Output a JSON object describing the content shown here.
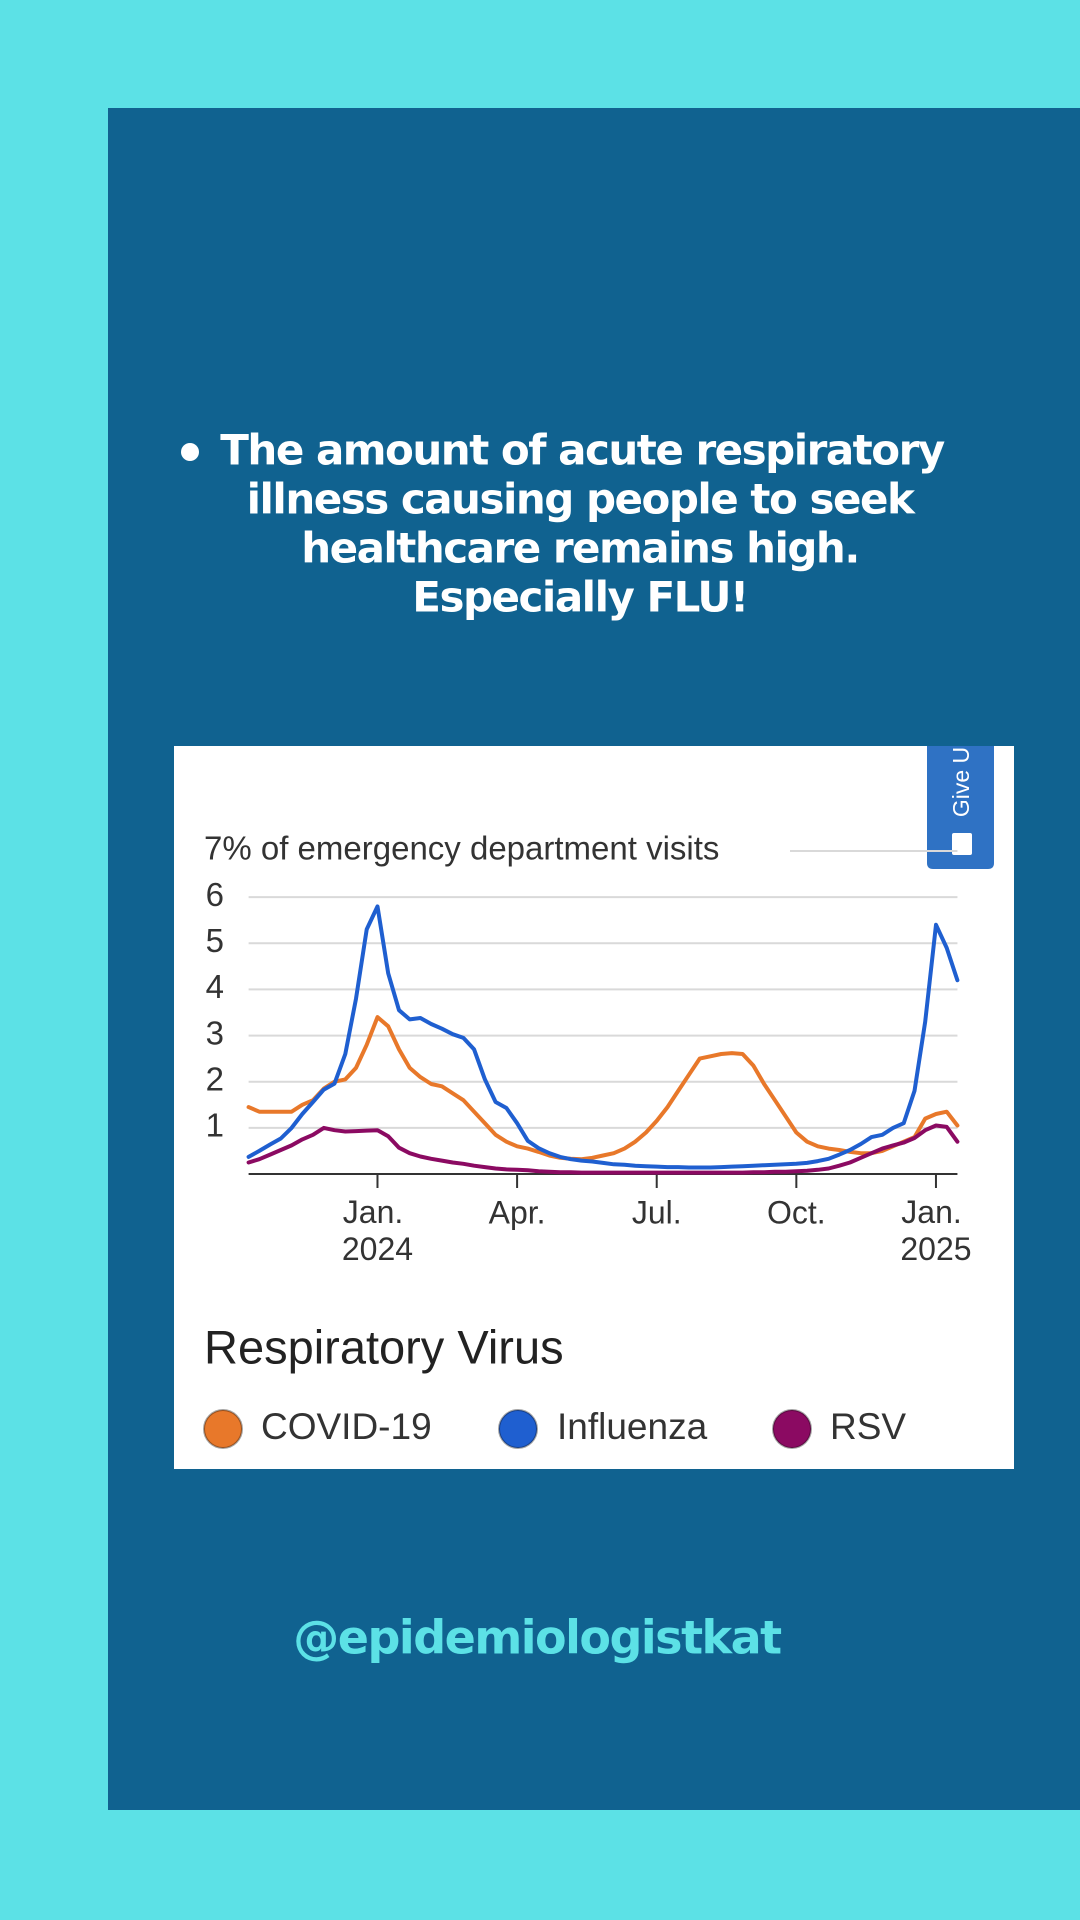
{
  "bullet": [
    "The amount of acute respiratory",
    "illness causing people to seek",
    "healthcare remains high.",
    "Especially FLU!"
  ],
  "feedback_tab": "Give U",
  "handle": "@epidemiologistkat",
  "chart_data": {
    "type": "line",
    "legend_title": "Respiratory Virus",
    "ylim": [
      0,
      7
    ],
    "yticks": [
      1,
      2,
      3,
      4,
      5,
      6,
      {
        "value": 7,
        "label": "7% of emergency department visits"
      }
    ],
    "grid": true,
    "categories": [
      null,
      null,
      null,
      null,
      null,
      null,
      null,
      null,
      null,
      null,
      null,
      null,
      "Jan. 2024",
      null,
      null,
      null,
      null,
      null,
      null,
      null,
      null,
      null,
      null,
      null,
      null,
      "Apr.",
      null,
      null,
      null,
      null,
      null,
      null,
      null,
      null,
      null,
      null,
      null,
      null,
      "Jul.",
      null,
      null,
      null,
      null,
      null,
      null,
      null,
      null,
      null,
      null,
      null,
      null,
      "Oct.",
      null,
      null,
      null,
      null,
      null,
      null,
      null,
      null,
      null,
      null,
      null,
      null,
      "Jan. 2025",
      null,
      null
    ],
    "series": [
      {
        "name": "COVID-19",
        "color": "#e8782a",
        "values": [
          1.45,
          1.35,
          1.35,
          1.35,
          1.35,
          1.5,
          1.6,
          1.85,
          2.0,
          2.05,
          2.3,
          2.8,
          3.4,
          3.2,
          2.7,
          2.3,
          2.1,
          1.95,
          1.9,
          1.75,
          1.6,
          1.35,
          1.1,
          0.85,
          0.7,
          0.6,
          0.55,
          0.48,
          0.4,
          0.35,
          0.33,
          0.32,
          0.35,
          0.4,
          0.45,
          0.55,
          0.7,
          0.9,
          1.15,
          1.45,
          1.8,
          2.15,
          2.5,
          2.55,
          2.6,
          2.62,
          2.6,
          2.35,
          1.95,
          1.6,
          1.25,
          0.9,
          0.7,
          0.6,
          0.55,
          0.52,
          0.48,
          0.45,
          0.45,
          0.5,
          0.6,
          0.7,
          0.8,
          1.2,
          1.3,
          1.35,
          1.05
        ]
      },
      {
        "name": "Influenza",
        "color": "#1f5fd0",
        "values": [
          0.37,
          0.5,
          0.64,
          0.77,
          1.0,
          1.3,
          1.56,
          1.83,
          1.96,
          2.6,
          3.8,
          5.3,
          5.8,
          4.35,
          3.55,
          3.35,
          3.38,
          3.25,
          3.15,
          3.03,
          2.95,
          2.7,
          2.05,
          1.56,
          1.43,
          1.1,
          0.72,
          0.56,
          0.45,
          0.37,
          0.32,
          0.29,
          0.27,
          0.24,
          0.21,
          0.2,
          0.18,
          0.17,
          0.16,
          0.15,
          0.15,
          0.14,
          0.14,
          0.14,
          0.15,
          0.16,
          0.17,
          0.18,
          0.19,
          0.2,
          0.21,
          0.22,
          0.24,
          0.28,
          0.33,
          0.42,
          0.52,
          0.65,
          0.8,
          0.85,
          1.0,
          1.1,
          1.8,
          3.3,
          5.4,
          4.9,
          4.2
        ]
      },
      {
        "name": "RSV",
        "color": "#8b0a62",
        "values": [
          0.25,
          0.32,
          0.42,
          0.52,
          0.62,
          0.75,
          0.85,
          1.0,
          0.95,
          0.92,
          0.93,
          0.94,
          0.95,
          0.82,
          0.57,
          0.45,
          0.38,
          0.33,
          0.29,
          0.25,
          0.22,
          0.18,
          0.15,
          0.12,
          0.1,
          0.09,
          0.08,
          0.06,
          0.05,
          0.04,
          0.04,
          0.03,
          0.03,
          0.03,
          0.03,
          0.03,
          0.03,
          0.03,
          0.03,
          0.03,
          0.03,
          0.03,
          0.03,
          0.03,
          0.03,
          0.03,
          0.03,
          0.04,
          0.04,
          0.05,
          0.05,
          0.06,
          0.07,
          0.09,
          0.12,
          0.18,
          0.25,
          0.35,
          0.45,
          0.55,
          0.62,
          0.68,
          0.78,
          0.95,
          1.05,
          1.02,
          0.7
        ]
      }
    ]
  }
}
